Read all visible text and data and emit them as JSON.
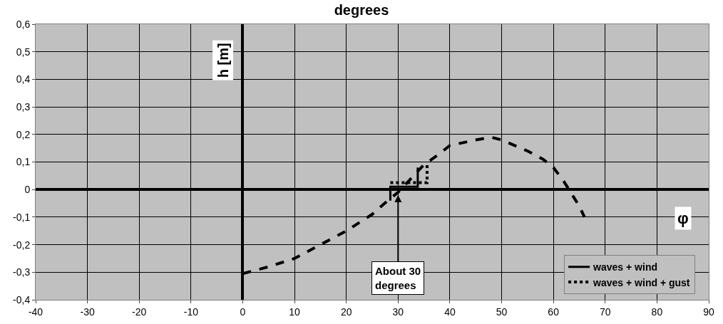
{
  "chart_data": {
    "type": "line",
    "title": "degrees",
    "xlabel": "φ",
    "ylabel": "h [m]",
    "xlim": [
      -40,
      90
    ],
    "xticks": [
      -40,
      -30,
      -20,
      -10,
      0,
      10,
      20,
      30,
      40,
      50,
      60,
      70,
      80,
      90
    ],
    "ylim": [
      -0.4,
      0.6
    ],
    "yticks": [
      {
        "value": -0.4,
        "label": "-0,4"
      },
      {
        "value": -0.3,
        "label": "-0,3"
      },
      {
        "value": -0.2,
        "label": "-0,2"
      },
      {
        "value": -0.1,
        "label": "-0,1"
      },
      0,
      {
        "value": 0.1,
        "label": "0,1"
      },
      {
        "value": 0.2,
        "label": "0,2"
      },
      {
        "value": 0.3,
        "label": "0,3"
      },
      {
        "value": 0.4,
        "label": "0,4"
      },
      {
        "value": 0.5,
        "label": "0,5"
      },
      {
        "value": 0.6,
        "label": "0,6"
      }
    ],
    "grid": true,
    "legend": "bottom right",
    "marker": "none",
    "series": [
      {
        "color": "#000000",
        "line_style": "dashed",
        "x": [
          0,
          5,
          10,
          15,
          20,
          25,
          28,
          30,
          33,
          35,
          38,
          40,
          45,
          48,
          50,
          55,
          58,
          60,
          62,
          63,
          65,
          66
        ],
        "values": [
          -0.305,
          -0.28,
          -0.25,
          -0.2,
          -0.15,
          -0.09,
          -0.04,
          -0.01,
          0.05,
          0.09,
          0.13,
          0.16,
          0.18,
          0.19,
          0.18,
          0.14,
          0.11,
          0.08,
          0.03,
          0,
          -0.06,
          -0.1
        ]
      },
      {
        "name": "waves + wind",
        "color": "#000000",
        "line_style": "solid",
        "x": [
          28.5,
          28.5,
          33.8,
          33.8
        ],
        "values": [
          -0.04,
          0.01,
          0.01,
          0.08
        ]
      },
      {
        "name": "waves + wind + gust",
        "color": "#000000",
        "line_style": "dotted",
        "x": [
          28.5,
          35.6,
          35.6
        ],
        "values": [
          0.025,
          0.025,
          0.09
        ]
      }
    ],
    "annotations": [
      {
        "text": "About 30\ndegrees",
        "x": 30,
        "y": -0.02
      }
    ]
  }
}
